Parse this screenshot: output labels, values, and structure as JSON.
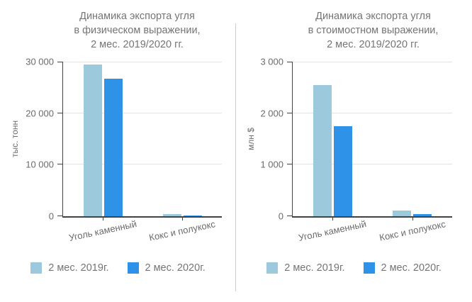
{
  "palette": {
    "background": "#ffffff",
    "divider": "#cbcbcb",
    "axis": "#424242",
    "grid": "#e3e3e3",
    "title_text": "#757575",
    "tick_text": "#6b6b6b",
    "legend_text": "#757575",
    "series_2019": "#9dc9dd",
    "series_2020": "#2e93e8"
  },
  "chart_data": [
    {
      "type": "bar",
      "title": "Динамика экспорта угля\nв физическом выражении,\n2 мес. 2019/2020 гг.",
      "ylabel": "тыс. тонн",
      "categories": [
        "Уголь каменный",
        "Кокс и полукокс"
      ],
      "series": [
        {
          "name": "2 мес. 2019г.",
          "color": "#9dc9dd",
          "values": [
            29400,
            480
          ]
        },
        {
          "name": "2 мес. 2020г.",
          "color": "#2e93e8",
          "values": [
            26700,
            200
          ]
        }
      ],
      "ylim": [
        0,
        30000
      ],
      "yticks": [
        {
          "value": 0,
          "label": "0"
        },
        {
          "value": 10000,
          "label": "10 000"
        },
        {
          "value": 20000,
          "label": "20 000"
        },
        {
          "value": 30000,
          "label": "30 000"
        }
      ],
      "grid": true,
      "legend_position": "bottom"
    },
    {
      "type": "bar",
      "title": "Динамика экспорта угля\nв стоимостном выражении,\n2 мес. 2019/2020 гг.",
      "ylabel": "млн $",
      "categories": [
        "Уголь каменный",
        "Кокс и полукокс"
      ],
      "series": [
        {
          "name": "2 мес. 2019г.",
          "color": "#9dc9dd",
          "values": [
            2550,
            110
          ]
        },
        {
          "name": "2 мес. 2020г.",
          "color": "#2e93e8",
          "values": [
            1750,
            45
          ]
        }
      ],
      "ylim": [
        0,
        3000
      ],
      "yticks": [
        {
          "value": 0,
          "label": "0"
        },
        {
          "value": 1000,
          "label": "1 000"
        },
        {
          "value": 2000,
          "label": "2 000"
        },
        {
          "value": 3000,
          "label": "3 000"
        }
      ],
      "grid": true,
      "legend_position": "bottom"
    }
  ]
}
